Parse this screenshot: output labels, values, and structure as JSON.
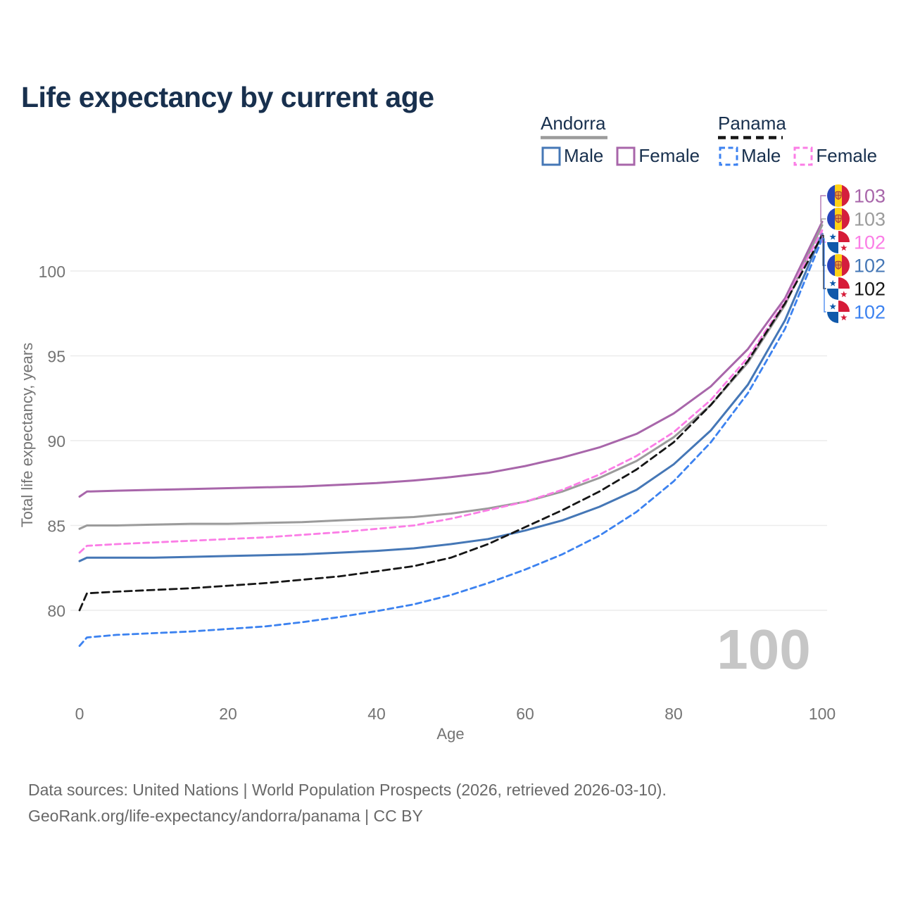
{
  "title": "Life expectancy by current age",
  "legend": {
    "groups": [
      {
        "label": "Andorra",
        "style": "solid",
        "items": [
          {
            "label": "Male",
            "color_key": "andorra_male"
          },
          {
            "label": "Female",
            "color_key": "andorra_female"
          }
        ]
      },
      {
        "label": "Panama",
        "style": "dashed",
        "items": [
          {
            "label": "Male",
            "color_key": "panama_male"
          },
          {
            "label": "Female",
            "color_key": "panama_female"
          }
        ]
      }
    ]
  },
  "colors": {
    "andorra_male": "#4577b6",
    "andorra_female": "#a866aa",
    "andorra_total": "#9b9b9b",
    "panama_male": "#3c82f0",
    "panama_female": "#fb7de6",
    "panama_total": "#161616",
    "title_text": "#18304e",
    "axis_text": "#747474",
    "grid": "#ececec",
    "watermark": "#c6c6c6",
    "footer_text": "#686868"
  },
  "chart_data": {
    "type": "line",
    "title": "Life expectancy by current age",
    "xlabel": "Age",
    "ylabel": "Total life expectancy, years",
    "x_ticks": [
      0,
      20,
      40,
      60,
      80,
      100
    ],
    "y_ticks": [
      80,
      85,
      90,
      95,
      100
    ],
    "xlim": [
      0,
      100
    ],
    "ylim": [
      77,
      103.5
    ],
    "grid": "horizontal",
    "legend_position": "top-right",
    "age_counter": "100",
    "x": [
      0,
      1,
      5,
      10,
      15,
      20,
      25,
      30,
      35,
      40,
      45,
      50,
      55,
      60,
      65,
      70,
      75,
      80,
      85,
      90,
      95,
      100
    ],
    "series": [
      {
        "name": "Andorra Female",
        "country": "andorra",
        "sex": "female",
        "dash": false,
        "color_key": "andorra_female",
        "end_label": "103",
        "values": [
          86.7,
          87.0,
          87.05,
          87.1,
          87.15,
          87.2,
          87.25,
          87.3,
          87.4,
          87.5,
          87.65,
          87.85,
          88.1,
          88.5,
          89.0,
          89.6,
          90.4,
          91.6,
          93.2,
          95.4,
          98.4,
          102.9
        ]
      },
      {
        "name": "Andorra Both sexes",
        "country": "andorra",
        "sex": "total",
        "dash": false,
        "color_key": "andorra_total",
        "end_label": "103",
        "values": [
          84.8,
          85.0,
          85.0,
          85.05,
          85.1,
          85.1,
          85.15,
          85.2,
          85.3,
          85.4,
          85.5,
          85.7,
          86.0,
          86.4,
          87.0,
          87.8,
          88.8,
          90.2,
          92.1,
          94.6,
          98.0,
          102.7
        ]
      },
      {
        "name": "Panama Female",
        "country": "panama",
        "sex": "female",
        "dash": true,
        "color_key": "panama_female",
        "end_label": "102",
        "values": [
          83.4,
          83.8,
          83.9,
          84.0,
          84.1,
          84.2,
          84.3,
          84.45,
          84.6,
          84.8,
          85.0,
          85.4,
          85.9,
          86.4,
          87.1,
          88.0,
          89.1,
          90.5,
          92.4,
          94.9,
          98.2,
          102.4
        ]
      },
      {
        "name": "Andorra Male",
        "country": "andorra",
        "sex": "male",
        "dash": false,
        "color_key": "andorra_male",
        "end_label": "102",
        "values": [
          82.9,
          83.1,
          83.1,
          83.1,
          83.15,
          83.2,
          83.25,
          83.3,
          83.4,
          83.5,
          83.65,
          83.9,
          84.2,
          84.7,
          85.3,
          86.1,
          87.1,
          88.6,
          90.6,
          93.3,
          97.1,
          102.2
        ]
      },
      {
        "name": "Panama Both sexes",
        "country": "panama",
        "sex": "total",
        "dash": true,
        "color_key": "panama_total",
        "end_label": "102",
        "values": [
          80.0,
          81.0,
          81.1,
          81.2,
          81.3,
          81.45,
          81.6,
          81.8,
          82.0,
          82.3,
          82.6,
          83.1,
          83.9,
          84.9,
          85.9,
          87.0,
          88.3,
          89.9,
          92.1,
          94.7,
          98.1,
          102.1
        ]
      },
      {
        "name": "Panama Male",
        "country": "panama",
        "sex": "male",
        "dash": true,
        "color_key": "panama_male",
        "end_label": "102",
        "values": [
          77.9,
          78.4,
          78.55,
          78.65,
          78.75,
          78.9,
          79.05,
          79.3,
          79.6,
          79.95,
          80.35,
          80.9,
          81.6,
          82.4,
          83.3,
          84.4,
          85.8,
          87.6,
          89.9,
          92.8,
          96.6,
          101.9
        ]
      }
    ]
  },
  "footer": {
    "line1": "Data sources: United Nations | World Population Prospects (2026, retrieved 2026-03-10).",
    "line2": "GeoRank.org/life-expectancy/andorra/panama | CC BY"
  }
}
